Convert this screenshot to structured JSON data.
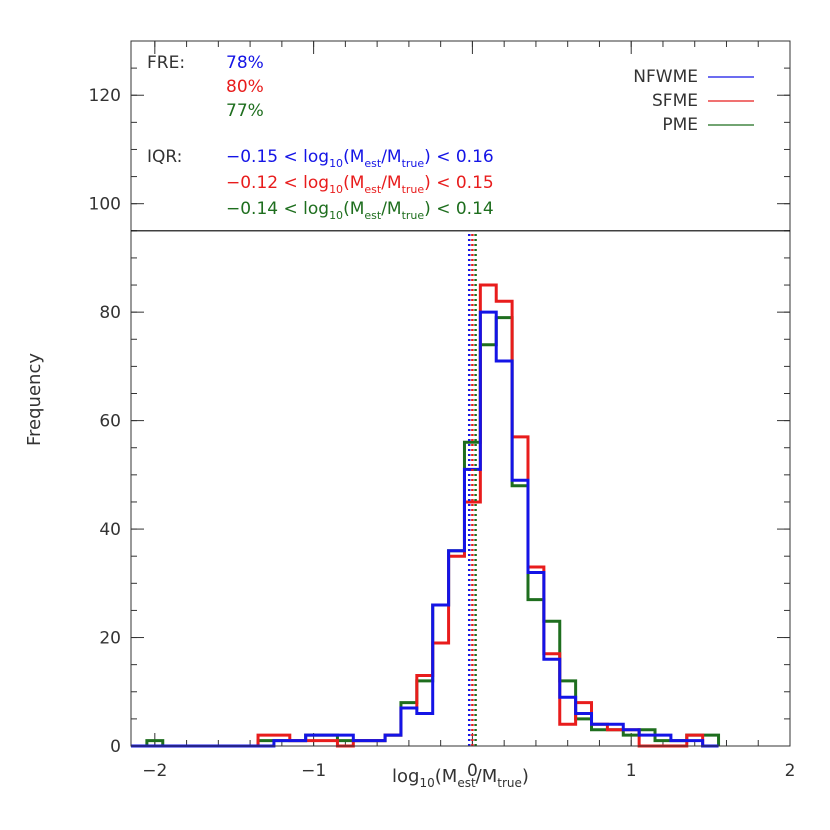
{
  "chart_data": {
    "type": "histogram",
    "xlabel": "log",
    "xlabel_parts": {
      "sub10": "10",
      "open": "(M",
      "est": "est",
      "slash": "/M",
      "true": "true",
      "close": ")"
    },
    "ylabel": "Frequency",
    "xlim": [
      -2.15,
      2.0
    ],
    "ylim": [
      0,
      130
    ],
    "xticks": [
      -2,
      -1,
      0,
      1,
      2
    ],
    "xtick_labels": [
      "−2",
      "−1",
      "0",
      "1",
      "2"
    ],
    "yticks": [
      0,
      20,
      40,
      60,
      80,
      100,
      120
    ],
    "ytick_labels": [
      "0",
      "20",
      "40",
      "60",
      "80",
      "100",
      "120"
    ],
    "panel_divider_y": 95,
    "bin_edges": [
      -2.15,
      -2.05,
      -1.95,
      -1.85,
      -1.75,
      -1.65,
      -1.55,
      -1.45,
      -1.35,
      -1.25,
      -1.15,
      -1.05,
      -0.95,
      -0.85,
      -0.75,
      -0.65,
      -0.55,
      -0.45,
      -0.35,
      -0.25,
      -0.15,
      -0.05,
      0.05,
      0.15,
      0.25,
      0.35,
      0.45,
      0.55,
      0.65,
      0.75,
      0.85,
      0.95,
      1.05,
      1.15,
      1.25,
      1.35,
      1.45,
      1.55
    ],
    "series": [
      {
        "name": "PME",
        "color": "#1e6e1e",
        "median": 0.02,
        "values": [
          0,
          1,
          0,
          0,
          0,
          0,
          0,
          0,
          1,
          1,
          1,
          2,
          2,
          1,
          1,
          1,
          2,
          8,
          12,
          26,
          36,
          56,
          74,
          79,
          48,
          27,
          23,
          12,
          5,
          3,
          3,
          2,
          3,
          1,
          1,
          2,
          2
        ]
      },
      {
        "name": "SFME",
        "color": "#e81c1c",
        "median": 0.0,
        "values": [
          0,
          0,
          0,
          0,
          0,
          0,
          0,
          0,
          2,
          2,
          1,
          1,
          1,
          0,
          1,
          1,
          2,
          7,
          13,
          19,
          35,
          45,
          85,
          82,
          57,
          33,
          17,
          4,
          8,
          4,
          3,
          3,
          0,
          0,
          0,
          2,
          0
        ]
      },
      {
        "name": "NFWME",
        "color": "#1414e6",
        "median": -0.02,
        "values": [
          0,
          0,
          0,
          0,
          0,
          0,
          0,
          0,
          0,
          1,
          1,
          2,
          2,
          2,
          1,
          1,
          2,
          7,
          6,
          26,
          36,
          51,
          80,
          71,
          49,
          32,
          16,
          9,
          6,
          4,
          4,
          3,
          2,
          2,
          1,
          1,
          0
        ]
      }
    ],
    "legend_entries": [
      {
        "label": "NFWME",
        "color": "#1414e6"
      },
      {
        "label": "SFME",
        "color": "#e81c1c"
      },
      {
        "label": "PME",
        "color": "#1e6e1e"
      }
    ],
    "annotations": {
      "fre_label": "FRE:",
      "fre": [
        {
          "text": "78%",
          "color": "#1414e6"
        },
        {
          "text": "80%",
          "color": "#e81c1c"
        },
        {
          "text": "77%",
          "color": "#1e6e1e"
        }
      ],
      "iqr_label": "IQR:",
      "iqr": [
        {
          "low": "−0.15",
          "high": "0.16",
          "color": "#1414e6"
        },
        {
          "low": "−0.12",
          "high": "0.15",
          "color": "#e81c1c"
        },
        {
          "low": "−0.14",
          "high": "0.14",
          "color": "#1e6e1e"
        }
      ],
      "iqr_lt": "<",
      "iqr_log": "log",
      "iqr_sub10": "10",
      "iqr_open": "(M",
      "iqr_est": "est",
      "iqr_slash": "/M",
      "iqr_true": "true",
      "iqr_close": ")"
    }
  }
}
